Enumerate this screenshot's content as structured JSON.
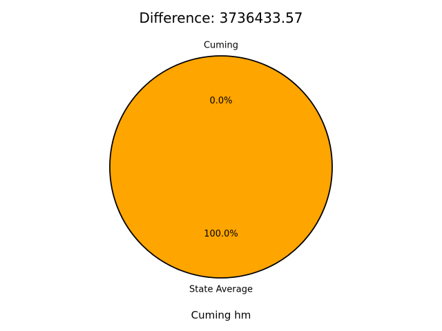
{
  "chart_data": {
    "type": "pie",
    "title": "Difference: 3736433.57",
    "xlabel": "Cuming hm",
    "ylabel": "",
    "slices": [
      {
        "label": "Cuming",
        "value": 0.0,
        "pct_label": "0.0%",
        "color": "#ffa500"
      },
      {
        "label": "State Average",
        "value": 100.0,
        "pct_label": "100.0%",
        "color": "#ffa500"
      }
    ],
    "edge_color": "#000000",
    "start_angle_deg": 90,
    "legend": "none",
    "grid": false
  }
}
